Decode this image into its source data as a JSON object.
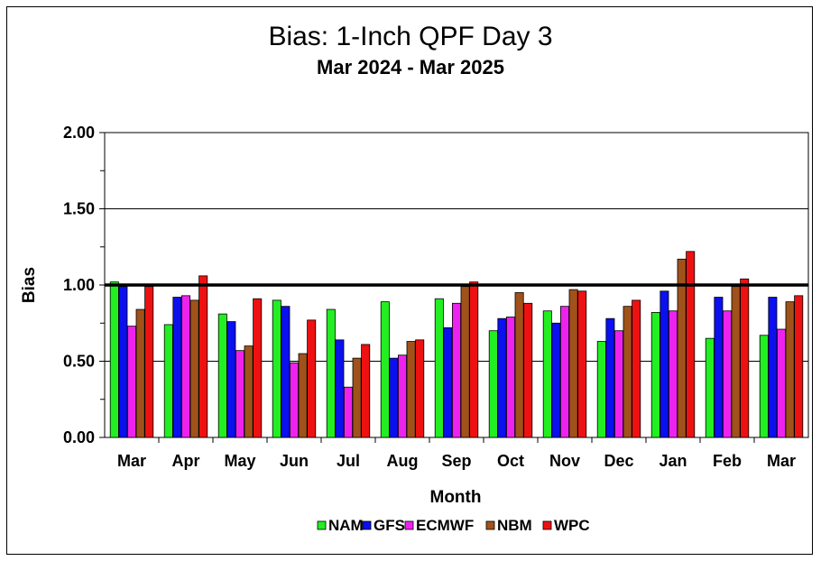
{
  "chart_data": {
    "type": "bar",
    "title": "Bias:  1-Inch QPF Day 3",
    "subtitle": "Mar 2024 - Mar 2025",
    "xlabel": "Month",
    "ylabel": "Bias",
    "ylim": [
      0,
      2
    ],
    "yticks": [
      "0.00",
      "0.50",
      "1.00",
      "1.50",
      "2.00"
    ],
    "reference_line": 1.0,
    "grid": true,
    "legend_position": "bottom",
    "categories": [
      "Mar",
      "Apr",
      "May",
      "Jun",
      "Jul",
      "Aug",
      "Sep",
      "Oct",
      "Nov",
      "Dec",
      "Jan",
      "Feb",
      "Mar"
    ],
    "series": [
      {
        "name": "NAM",
        "color": "#22ee22",
        "values": [
          1.02,
          0.74,
          0.81,
          0.9,
          0.84,
          0.89,
          0.91,
          0.7,
          0.83,
          0.63,
          0.82,
          0.65,
          0.67
        ]
      },
      {
        "name": "GFS",
        "color": "#0a10ee",
        "values": [
          0.99,
          0.92,
          0.76,
          0.86,
          0.64,
          0.52,
          0.72,
          0.78,
          0.75,
          0.78,
          0.96,
          0.92,
          0.92
        ]
      },
      {
        "name": "ECMWF",
        "color": "#ee22ee",
        "values": [
          0.73,
          0.93,
          0.57,
          0.49,
          0.33,
          0.54,
          0.88,
          0.79,
          0.86,
          0.7,
          0.83,
          0.83,
          0.71
        ]
      },
      {
        "name": "NBM",
        "color": "#a0521a",
        "values": [
          0.84,
          0.9,
          0.6,
          0.55,
          0.52,
          0.63,
          0.99,
          0.95,
          0.97,
          0.86,
          1.17,
          0.99,
          0.89
        ]
      },
      {
        "name": "WPC",
        "color": "#ee1111",
        "values": [
          0.99,
          1.06,
          0.91,
          0.77,
          0.61,
          0.64,
          1.02,
          0.88,
          0.96,
          0.9,
          1.22,
          1.04,
          0.93
        ]
      }
    ]
  }
}
